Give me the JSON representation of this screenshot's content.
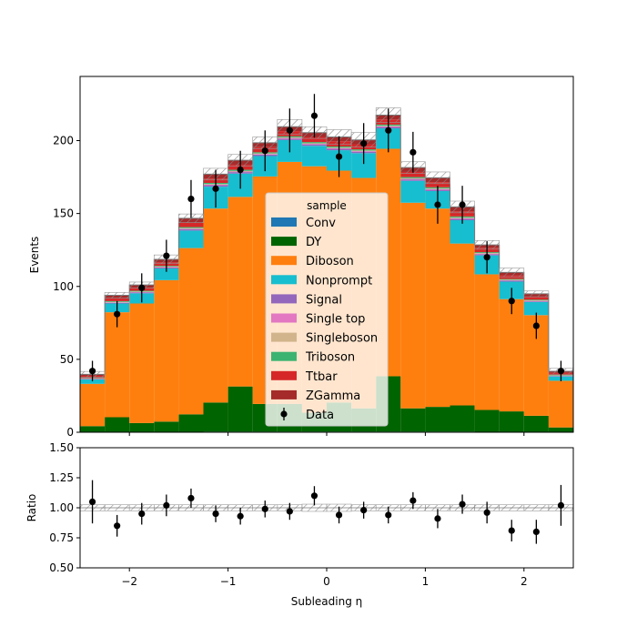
{
  "chart_data": {
    "type": "bar",
    "stacked": true,
    "xlabel": "Subleading η",
    "ylabel": "Events",
    "ratio_ylabel": "Ratio",
    "xlim": [
      -2.5,
      2.5
    ],
    "ylim": [
      0,
      244
    ],
    "ratio_ylim": [
      0.5,
      1.5
    ],
    "bin_edges": [
      -2.5,
      -2.25,
      -2.0,
      -1.75,
      -1.5,
      -1.25,
      -1.0,
      -0.75,
      -0.5,
      -0.25,
      0.0,
      0.25,
      0.5,
      0.75,
      1.0,
      1.25,
      1.5,
      1.75,
      2.0,
      2.25,
      2.5
    ],
    "xticks": [
      -2,
      -1,
      0,
      1,
      2
    ],
    "xtick_labels": [
      "−2",
      "−1",
      "0",
      "1",
      "2"
    ],
    "yticks": [
      0,
      50,
      100,
      150,
      200
    ],
    "ytick_labels": [
      "0",
      "50",
      "100",
      "150",
      "200"
    ],
    "ratio_yticks": [
      0.5,
      0.75,
      1.0,
      1.25,
      1.5
    ],
    "ratio_ytick_labels": [
      "0.50",
      "0.75",
      "1.00",
      "1.25",
      "1.50"
    ],
    "legend_title": "sample",
    "legend_position": "center",
    "series": [
      {
        "name": "Conv",
        "color": "#1f77b4",
        "values": [
          0.2,
          0.3,
          0.3,
          0.3,
          0.3,
          0.4,
          0.4,
          0.4,
          0.4,
          0.4,
          0.4,
          0.4,
          0.4,
          0.4,
          0.4,
          0.4,
          0.3,
          0.3,
          0.3,
          0.3
        ]
      },
      {
        "name": "DY",
        "color": "#006400",
        "values": [
          4,
          10,
          6,
          7,
          12,
          20,
          31,
          19,
          19,
          13,
          20,
          16,
          38,
          16,
          17,
          18,
          15,
          14,
          11,
          3
        ]
      },
      {
        "name": "Diboson",
        "color": "#ff7f0e",
        "values": [
          29,
          72,
          82,
          97,
          114,
          133,
          130,
          156,
          166,
          169,
          159,
          158,
          156,
          141,
          136,
          111,
          93,
          77,
          69,
          32
        ]
      },
      {
        "name": "Nonprompt",
        "color": "#17becf",
        "values": [
          3,
          6,
          7,
          8,
          12,
          15,
          16,
          14,
          15,
          14,
          14,
          17,
          14,
          15,
          12,
          16,
          13,
          12,
          9,
          3
        ]
      },
      {
        "name": "Signal",
        "color": "#9467bd",
        "values": [
          0.3,
          0.5,
          0.6,
          0.7,
          0.9,
          1,
          1,
          1,
          1,
          1,
          1,
          1,
          1,
          1,
          1,
          1,
          0.8,
          0.7,
          0.5,
          0.3
        ]
      },
      {
        "name": "Single top",
        "color": "#e377c2",
        "values": [
          0.2,
          0.3,
          0.3,
          0.3,
          0.4,
          0.4,
          0.4,
          0.4,
          0.4,
          0.4,
          0.4,
          0.4,
          0.4,
          0.4,
          0.4,
          0.4,
          0.4,
          0.3,
          0.3,
          0.2
        ]
      },
      {
        "name": "Singleboson",
        "color": "#d2b48c",
        "values": [
          0.2,
          0.3,
          0.3,
          0.3,
          0.4,
          0.4,
          0.4,
          0.4,
          0.4,
          0.4,
          0.4,
          0.4,
          0.4,
          0.4,
          0.4,
          0.4,
          0.4,
          0.3,
          0.3,
          0.2
        ]
      },
      {
        "name": "Triboson",
        "color": "#3cb371",
        "values": [
          0.3,
          0.5,
          0.5,
          0.5,
          0.7,
          0.8,
          0.8,
          0.8,
          0.8,
          0.8,
          0.8,
          0.8,
          0.8,
          0.8,
          0.8,
          0.8,
          0.6,
          0.5,
          0.5,
          0.3
        ]
      },
      {
        "name": "Ttbar",
        "color": "#d62728",
        "values": [
          1.5,
          2,
          2,
          2.5,
          3,
          3,
          3.5,
          3.5,
          3.5,
          3.5,
          3.5,
          3.5,
          3.5,
          3.5,
          3.5,
          3.5,
          3,
          2.5,
          2,
          1.5
        ]
      },
      {
        "name": "ZGamma",
        "color": "#a52a2a",
        "values": [
          1,
          2,
          2,
          2,
          3,
          3,
          3,
          3,
          3,
          3,
          3,
          3,
          3,
          3,
          3,
          3,
          2,
          2,
          2,
          1
        ]
      }
    ],
    "mc_uncertainty": [
      2,
      2,
      2,
      3,
      3,
      4,
      4,
      4,
      5,
      4,
      5,
      5,
      5,
      4,
      4,
      4,
      3,
      3,
      2,
      2
    ],
    "data": {
      "name": "Data",
      "color": "#000000",
      "values": [
        42,
        81,
        99,
        121,
        160,
        167,
        180,
        193,
        207,
        217,
        189,
        198,
        207,
        192,
        156,
        156,
        120,
        90,
        73,
        42
      ],
      "errors": [
        7,
        9,
        10,
        11,
        13,
        13,
        13,
        14,
        15,
        15,
        14,
        14,
        15,
        14,
        13,
        13,
        11,
        9,
        9,
        7
      ]
    },
    "ratio": {
      "values": [
        1.05,
        0.85,
        0.95,
        1.02,
        1.08,
        0.95,
        0.93,
        0.99,
        0.97,
        1.1,
        0.94,
        0.98,
        0.94,
        1.06,
        0.91,
        1.03,
        0.96,
        0.81,
        0.8,
        1.02
      ],
      "errors": [
        0.18,
        0.09,
        0.09,
        0.09,
        0.08,
        0.07,
        0.07,
        0.07,
        0.07,
        0.08,
        0.07,
        0.07,
        0.07,
        0.07,
        0.08,
        0.08,
        0.09,
        0.09,
        0.1,
        0.17
      ],
      "band": [
        0.025,
        0.025,
        0.025,
        0.025,
        0.025,
        0.025,
        0.025,
        0.025,
        0.025,
        0.03,
        0.03,
        0.025,
        0.025,
        0.025,
        0.025,
        0.025,
        0.025,
        0.025,
        0.025,
        0.025
      ]
    }
  }
}
